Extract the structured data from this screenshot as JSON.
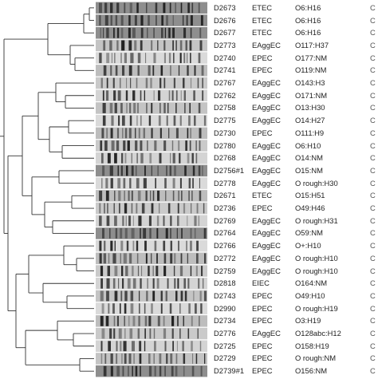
{
  "rows": [
    {
      "strain": "D2673",
      "pathotype": "ETEC",
      "serotype": "O6:H16",
      "extra": "C"
    },
    {
      "strain": "D2676",
      "pathotype": "ETEC",
      "serotype": "O6:H16",
      "extra": "C"
    },
    {
      "strain": "D2677",
      "pathotype": "ETEC",
      "serotype": "O6:H16",
      "extra": "C"
    },
    {
      "strain": "D2773",
      "pathotype": "EAggEC",
      "serotype": "O117:H37",
      "extra": "C"
    },
    {
      "strain": "D2740",
      "pathotype": "EPEC",
      "serotype": "O177:NM",
      "extra": "C"
    },
    {
      "strain": "D2741",
      "pathotype": "EPEC",
      "serotype": "O119:NM",
      "extra": "C"
    },
    {
      "strain": "D2767",
      "pathotype": "EAggEC",
      "serotype": "O143:H3",
      "extra": "C"
    },
    {
      "strain": "D2762",
      "pathotype": "EAggEC",
      "serotype": "O171:NM",
      "extra": "C"
    },
    {
      "strain": "D2758",
      "pathotype": "EAggEC",
      "serotype": "O13:H30",
      "extra": "C"
    },
    {
      "strain": "D2775",
      "pathotype": "EAggEC",
      "serotype": "O14:H27",
      "extra": "C"
    },
    {
      "strain": "D2730",
      "pathotype": "EPEC",
      "serotype": "O111:H9",
      "extra": "C"
    },
    {
      "strain": "D2780",
      "pathotype": "EAggEC",
      "serotype": "O6:H10",
      "extra": "C"
    },
    {
      "strain": "D2768",
      "pathotype": "EAggEC",
      "serotype": "O14:NM",
      "extra": "C"
    },
    {
      "strain": "D2756#1",
      "pathotype": "EAggEC",
      "serotype": "O15:NM",
      "extra": "C"
    },
    {
      "strain": "D2778",
      "pathotype": "EAggEC",
      "serotype": "O rough:H30",
      "extra": "C"
    },
    {
      "strain": "D2671",
      "pathotype": "ETEC",
      "serotype": "O15:H51",
      "extra": "C"
    },
    {
      "strain": "D2736",
      "pathotype": "EPEC",
      "serotype": "O49:H46",
      "extra": "C"
    },
    {
      "strain": "D2769",
      "pathotype": "EAggEC",
      "serotype": "O rough:H31",
      "extra": "C"
    },
    {
      "strain": "D2764",
      "pathotype": "EAggEC",
      "serotype": "O59:NM",
      "extra": "C"
    },
    {
      "strain": "D2766",
      "pathotype": "EAggEC",
      "serotype": "O+:H10",
      "extra": "C"
    },
    {
      "strain": "D2772",
      "pathotype": "EAggEC",
      "serotype": "O rough:H10",
      "extra": "C"
    },
    {
      "strain": "D2759",
      "pathotype": "EAggEC",
      "serotype": "O rough:H10",
      "extra": "C"
    },
    {
      "strain": "D2818",
      "pathotype": "EIEC",
      "serotype": "O164:NM",
      "extra": "C"
    },
    {
      "strain": "D2743",
      "pathotype": "EPEC",
      "serotype": "O49:H10",
      "extra": "C"
    },
    {
      "strain": "D2990",
      "pathotype": "EPEC",
      "serotype": "O  rough:H19",
      "extra": "C"
    },
    {
      "strain": "D2734",
      "pathotype": "EPEC",
      "serotype": "O3:H19",
      "extra": "C"
    },
    {
      "strain": "D2776",
      "pathotype": "EAggEC",
      "serotype": "O128abc:H12",
      "extra": "C"
    },
    {
      "strain": "D2725",
      "pathotype": "EPEC",
      "serotype": "O158:H19",
      "extra": "C"
    },
    {
      "strain": "D2729",
      "pathotype": "EPEC",
      "serotype": "O rough:NM",
      "extra": "C"
    },
    {
      "strain": "D2739#1",
      "pathotype": "EPEC",
      "serotype": "O156:NM",
      "extra": "C"
    }
  ],
  "colors": {
    "gel_background": "#cfcfcf",
    "band": "#1a1a1a",
    "dendrogram_line": "#333333",
    "text": "#222222"
  }
}
